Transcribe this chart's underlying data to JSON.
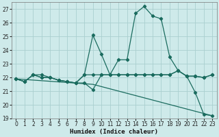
{
  "xlabel": "Humidex (Indice chaleur)",
  "background_color": "#ceeaea",
  "grid_color": "#aacfcf",
  "line_color": "#1a6b5e",
  "xlim": [
    -0.5,
    23.5
  ],
  "ylim": [
    19,
    27.5
  ],
  "yticks": [
    19,
    20,
    21,
    22,
    23,
    24,
    25,
    26,
    27
  ],
  "xticks": [
    0,
    1,
    2,
    3,
    4,
    5,
    6,
    7,
    8,
    9,
    10,
    11,
    12,
    13,
    14,
    15,
    16,
    17,
    18,
    19,
    20,
    21,
    22,
    23
  ],
  "line1_x": [
    0,
    1,
    2,
    3,
    4,
    5,
    6,
    7,
    8,
    9,
    10,
    11,
    12,
    13,
    14,
    15,
    16,
    17,
    18,
    19,
    20,
    21,
    22,
    23
  ],
  "line1_y": [
    21.9,
    21.7,
    22.2,
    22.2,
    22.0,
    21.8,
    21.7,
    21.6,
    21.6,
    21.1,
    22.2,
    22.2,
    23.3,
    23.3,
    26.7,
    27.2,
    26.5,
    26.3,
    23.5,
    22.5,
    22.1,
    20.9,
    19.3,
    19.2
  ],
  "line2_x": [
    0,
    1,
    2,
    3,
    4,
    5,
    6,
    7,
    8,
    9,
    10,
    11,
    12,
    13,
    14,
    15,
    16,
    17,
    18,
    19,
    20,
    21,
    22,
    23
  ],
  "line2_y": [
    21.9,
    21.7,
    22.2,
    22.0,
    22.0,
    21.8,
    21.7,
    21.6,
    22.2,
    25.1,
    23.7,
    22.2,
    22.2,
    22.2,
    22.2,
    22.2,
    22.2,
    22.2,
    22.2,
    22.5,
    22.1,
    22.1,
    22.0,
    22.2
  ],
  "line3_x": [
    0,
    1,
    2,
    3,
    4,
    5,
    6,
    7,
    8,
    9,
    10,
    11,
    12,
    13,
    14,
    15,
    16,
    17,
    18,
    19,
    20,
    21,
    22,
    23
  ],
  "line3_y": [
    21.9,
    21.7,
    22.2,
    22.0,
    22.0,
    21.8,
    21.7,
    21.6,
    22.2,
    22.2,
    22.2,
    22.2,
    22.2,
    22.2,
    22.2,
    22.2,
    22.2,
    22.2,
    22.2,
    22.5,
    22.1,
    22.1,
    22.0,
    22.2
  ],
  "line4_x": [
    0,
    9,
    23
  ],
  "line4_y": [
    21.9,
    21.5,
    19.2
  ]
}
